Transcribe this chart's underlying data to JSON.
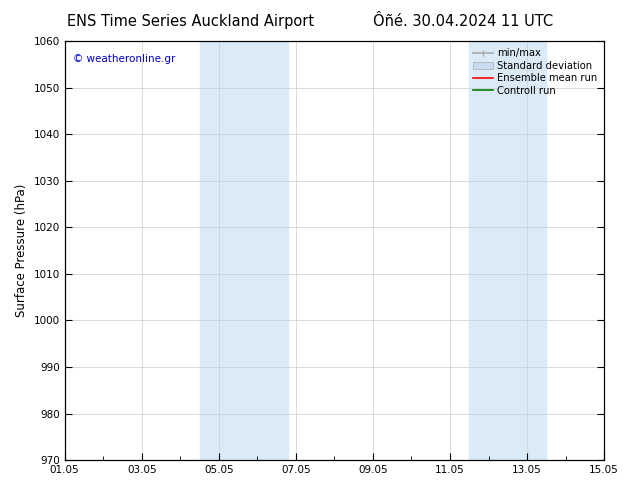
{
  "title_left": "ENS Time Series Auckland Airport",
  "title_right": "Ôñé. 30.04.2024 11 UTC",
  "ylabel": "Surface Pressure (hPa)",
  "ylim": [
    970,
    1060
  ],
  "yticks": [
    970,
    980,
    990,
    1000,
    1010,
    1020,
    1030,
    1040,
    1050,
    1060
  ],
  "xtick_labels": [
    "01.05",
    "03.05",
    "05.05",
    "07.05",
    "09.05",
    "11.05",
    "13.05",
    "15.05"
  ],
  "xtick_positions": [
    0,
    2,
    4,
    6,
    8,
    10,
    12,
    14
  ],
  "xlim": [
    0,
    14
  ],
  "shaded_bands": [
    {
      "x_start": 3.5,
      "x_end": 5.8,
      "color": "#daeaf7"
    },
    {
      "x_start": 10.5,
      "x_end": 12.5,
      "color": "#daeaf7"
    }
  ],
  "watermark_text": "© weatheronline.gr",
  "watermark_color": "#0000cc",
  "legend_entries": [
    {
      "label": "min/max",
      "color": "#aaaaaa",
      "lw": 1.2,
      "style": "solid"
    },
    {
      "label": "Standard deviation",
      "color": "#c8ddf0",
      "lw": 5,
      "style": "solid"
    },
    {
      "label": "Ensemble mean run",
      "color": "#ff0000",
      "lw": 1.2,
      "style": "solid"
    },
    {
      "label": "Controll run",
      "color": "#008000",
      "lw": 1.2,
      "style": "solid"
    }
  ],
  "bg_color": "#ffffff",
  "grid_color": "#cccccc",
  "title_fontsize": 10.5,
  "tick_label_fontsize": 7.5,
  "ylabel_fontsize": 8.5
}
